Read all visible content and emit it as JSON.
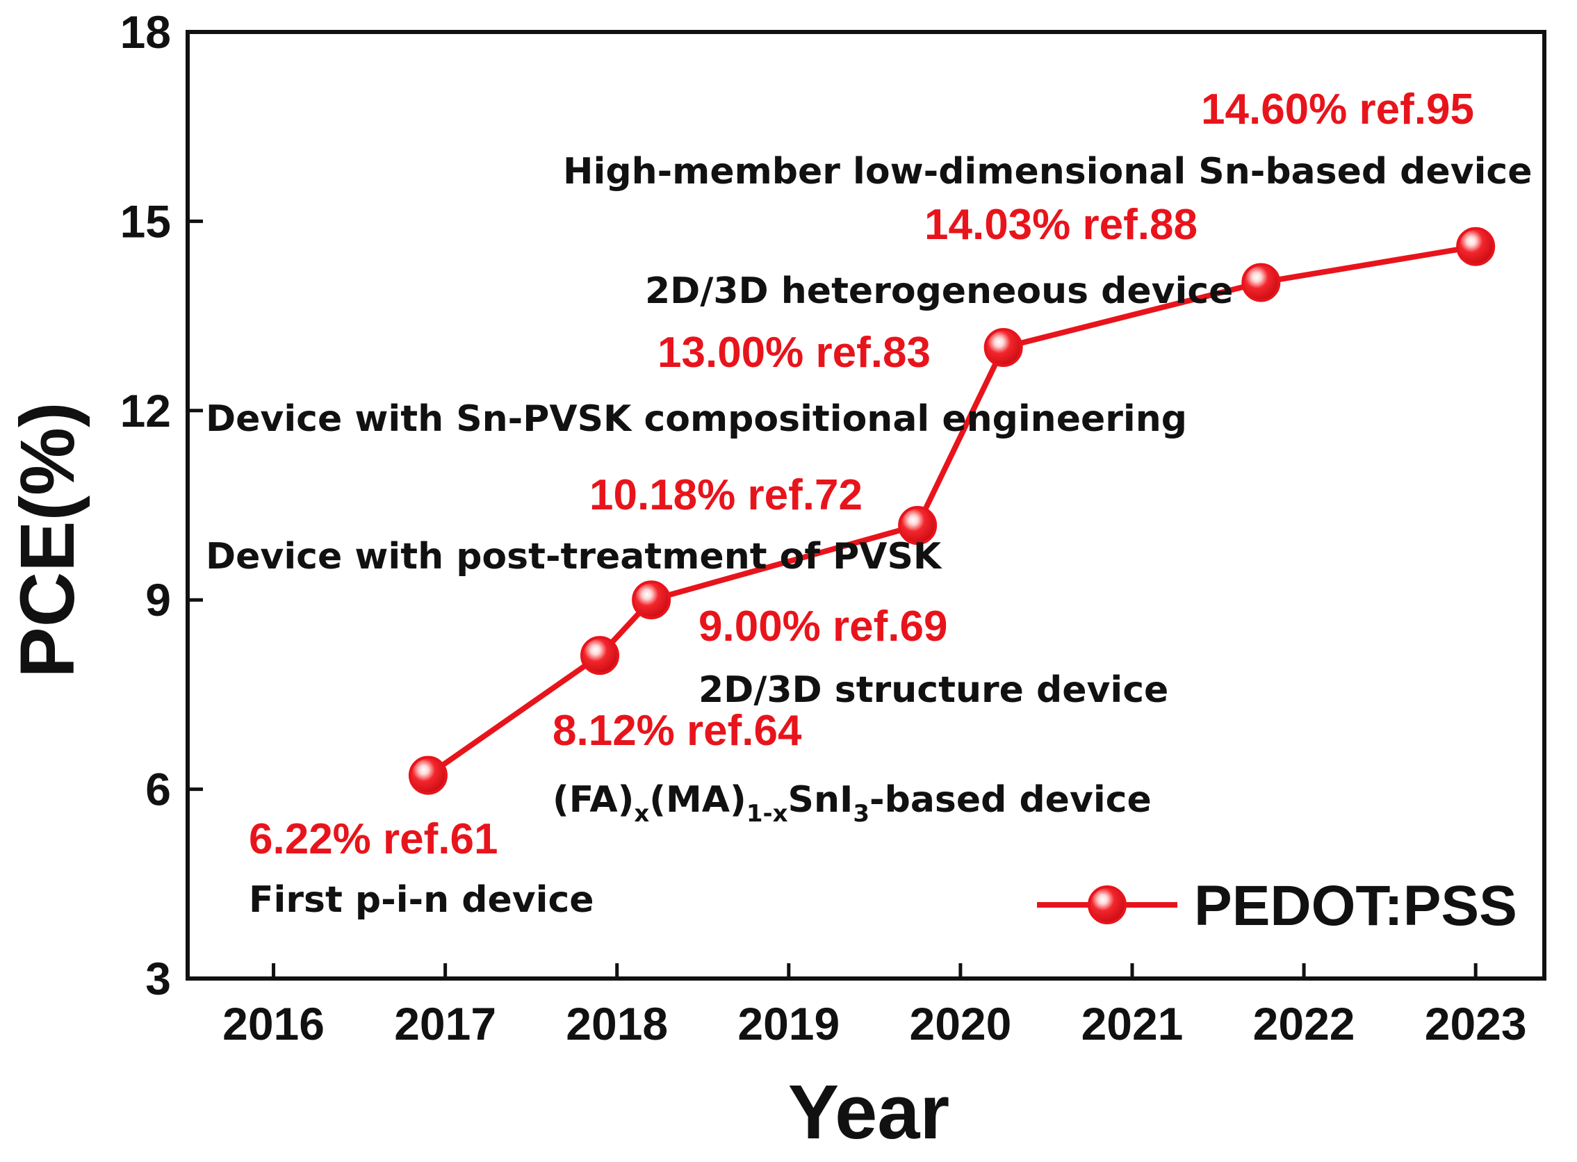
{
  "chart_data": {
    "type": "line",
    "xlabel": "Year",
    "ylabel": "PCE(%)",
    "xlim": [
      2015.5,
      2023.4
    ],
    "ylim": [
      3,
      18
    ],
    "xticks": [
      2016,
      2017,
      2018,
      2019,
      2020,
      2021,
      2022,
      2023
    ],
    "yticks": [
      3,
      6,
      9,
      12,
      15,
      18
    ],
    "grid": false,
    "legend": {
      "label": "PEDOT:PSS",
      "position": "bottom-right"
    },
    "series_color": "#e8141c",
    "series": [
      {
        "name": "PEDOT:PSS",
        "points": [
          {
            "x": 2016.9,
            "y": 6.22,
            "value_label": "6.22% ref.61",
            "description": "First p-i-n device"
          },
          {
            "x": 2017.9,
            "y": 8.12,
            "value_label": "8.12% ref.64",
            "description": "(FA)x(MA)1-xSnI3-based device"
          },
          {
            "x": 2018.2,
            "y": 9.0,
            "value_label": "9.00% ref.69",
            "description": "2D/3D structure device"
          },
          {
            "x": 2019.75,
            "y": 10.18,
            "value_label": "10.18% ref.72",
            "description": "Device with post-treatment of PVSK"
          },
          {
            "x": 2020.25,
            "y": 13.0,
            "value_label": "13.00% ref.83",
            "description": "Device with Sn-PVSK compositional engineering"
          },
          {
            "x": 2021.75,
            "y": 14.03,
            "value_label": "14.03% ref.88",
            "description": "2D/3D heterogeneous device"
          },
          {
            "x": 2023.0,
            "y": 14.6,
            "value_label": "14.60% ref.95",
            "description": "High-member low-dimensional Sn-based device"
          }
        ]
      }
    ],
    "formula_parts": {
      "fa": "(FA)",
      "x": "x",
      "ma": "(MA)",
      "one_minus_x": "1-x",
      "sni": "SnI",
      "three": "3",
      "rest": "-based device"
    }
  }
}
